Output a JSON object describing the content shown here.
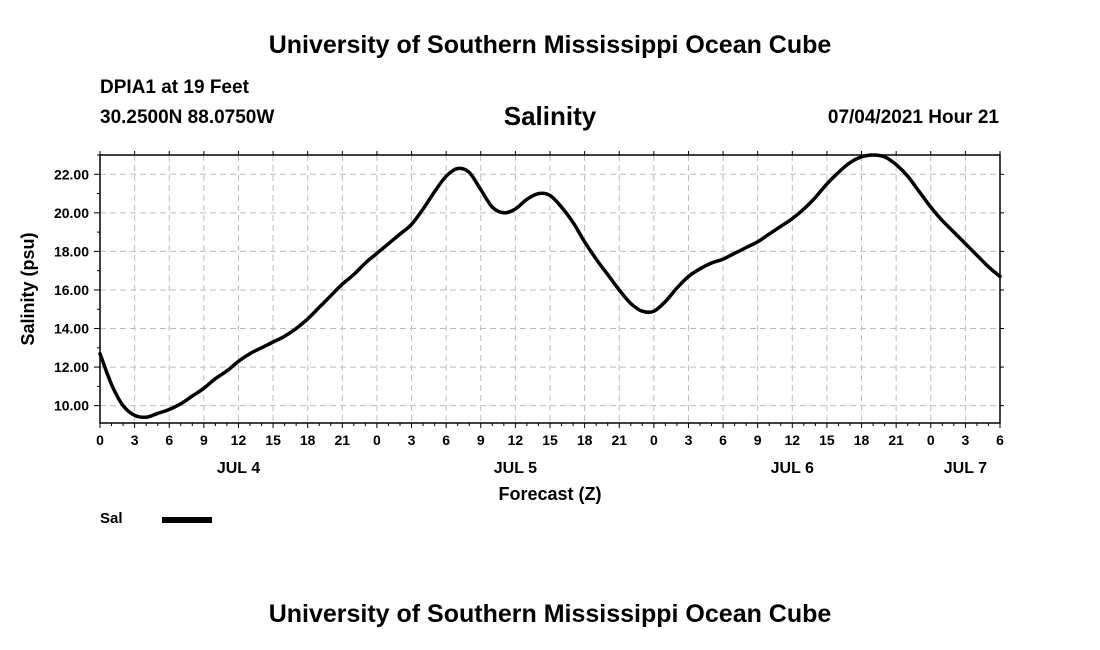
{
  "header": {
    "top_title": "University of Southern Mississippi Ocean Cube",
    "station_name": "DPIA1 at 19 Feet",
    "station_coords": "30.2500N  88.0750W",
    "chart_title": "Salinity",
    "timestamp": "07/04/2021 Hour 21",
    "bottom_title": "University of Southern Mississippi Ocean Cube"
  },
  "legend": {
    "label": "Sal"
  },
  "chart_data": {
    "type": "line",
    "title": "Salinity",
    "xlabel": "Forecast (Z)",
    "ylabel": "Salinity (psu)",
    "x_unit": "hours since JUL 4 00Z",
    "xlim": [
      0,
      78
    ],
    "ylim": [
      9.1,
      23.0
    ],
    "y_ticks": [
      "10.00",
      "12.00",
      "14.00",
      "16.00",
      "18.00",
      "20.00",
      "22.00"
    ],
    "x_ticks": [
      {
        "hour": 0,
        "label": "0"
      },
      {
        "hour": 3,
        "label": "3"
      },
      {
        "hour": 6,
        "label": "6"
      },
      {
        "hour": 9,
        "label": "9"
      },
      {
        "hour": 12,
        "label": "12"
      },
      {
        "hour": 15,
        "label": "15"
      },
      {
        "hour": 18,
        "label": "18"
      },
      {
        "hour": 21,
        "label": "21"
      },
      {
        "hour": 24,
        "label": "0"
      },
      {
        "hour": 27,
        "label": "3"
      },
      {
        "hour": 30,
        "label": "6"
      },
      {
        "hour": 33,
        "label": "9"
      },
      {
        "hour": 36,
        "label": "12"
      },
      {
        "hour": 39,
        "label": "15"
      },
      {
        "hour": 42,
        "label": "18"
      },
      {
        "hour": 45,
        "label": "21"
      },
      {
        "hour": 48,
        "label": "0"
      },
      {
        "hour": 51,
        "label": "3"
      },
      {
        "hour": 54,
        "label": "6"
      },
      {
        "hour": 57,
        "label": "9"
      },
      {
        "hour": 60,
        "label": "12"
      },
      {
        "hour": 63,
        "label": "15"
      },
      {
        "hour": 66,
        "label": "18"
      },
      {
        "hour": 69,
        "label": "21"
      },
      {
        "hour": 72,
        "label": "0"
      },
      {
        "hour": 75,
        "label": "3"
      },
      {
        "hour": 78,
        "label": "6"
      }
    ],
    "day_labels": [
      {
        "hour": 12,
        "label": "JUL 4"
      },
      {
        "hour": 36,
        "label": "JUL 5"
      },
      {
        "hour": 60,
        "label": "JUL 6"
      },
      {
        "hour": 75,
        "label": "JUL 7"
      }
    ],
    "series": [
      {
        "name": "Sal",
        "color": "#000000",
        "x": [
          0,
          1,
          2,
          3,
          4,
          5,
          6,
          7,
          8,
          9,
          10,
          11,
          12,
          13,
          14,
          15,
          16,
          17,
          18,
          19,
          20,
          21,
          22,
          23,
          24,
          25,
          26,
          27,
          28,
          29,
          30,
          31,
          32,
          33,
          34,
          35,
          36,
          37,
          38,
          39,
          40,
          41,
          42,
          43,
          44,
          45,
          46,
          47,
          48,
          49,
          50,
          51,
          52,
          53,
          54,
          55,
          56,
          57,
          58,
          59,
          60,
          61,
          62,
          63,
          64,
          65,
          66,
          67,
          68,
          69,
          70,
          71,
          72,
          73,
          74,
          75,
          76,
          77,
          78
        ],
        "values": [
          12.7,
          11.1,
          10.0,
          9.5,
          9.4,
          9.6,
          9.8,
          10.1,
          10.5,
          10.9,
          11.4,
          11.8,
          12.3,
          12.7,
          13.0,
          13.3,
          13.6,
          14.0,
          14.5,
          15.1,
          15.7,
          16.3,
          16.8,
          17.4,
          17.9,
          18.4,
          18.9,
          19.4,
          20.2,
          21.1,
          21.9,
          22.3,
          22.1,
          21.2,
          20.3,
          20.0,
          20.2,
          20.7,
          21.0,
          20.9,
          20.3,
          19.5,
          18.5,
          17.6,
          16.8,
          16.0,
          15.3,
          14.9,
          14.9,
          15.4,
          16.1,
          16.7,
          17.1,
          17.4,
          17.6,
          17.9,
          18.2,
          18.5,
          18.9,
          19.3,
          19.7,
          20.2,
          20.8,
          21.5,
          22.1,
          22.6,
          22.9,
          23.0,
          22.9,
          22.5,
          21.9,
          21.1,
          20.3,
          19.6,
          19.0,
          18.4,
          17.8,
          17.2,
          16.7
        ]
      }
    ]
  }
}
